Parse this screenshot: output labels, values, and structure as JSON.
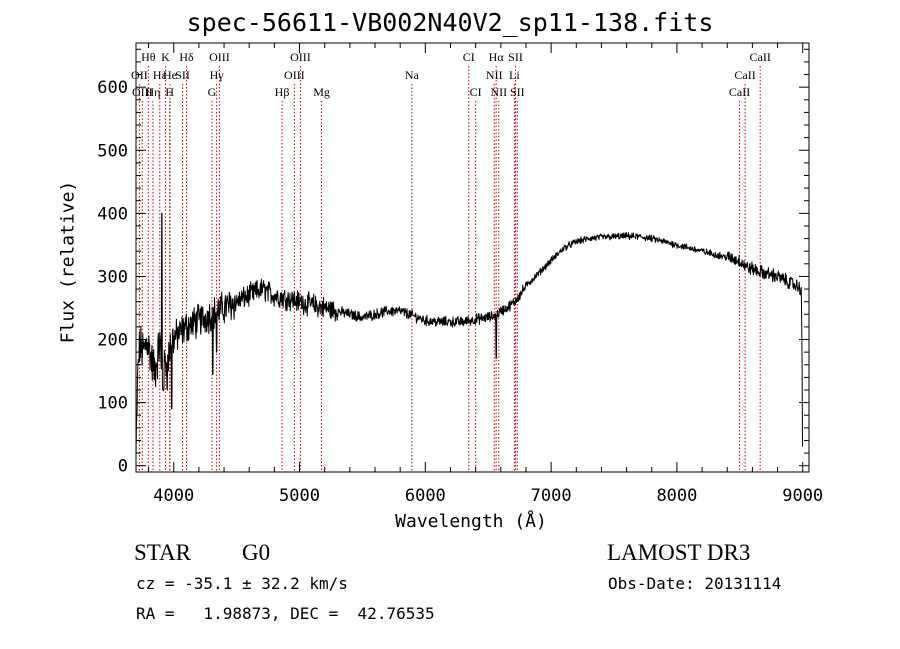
{
  "chart_data": {
    "type": "line",
    "title": "spec-56611-VB002N40V2_sp11-138.fits",
    "xlabel": "Wavelength (Å)",
    "ylabel": "Flux (relative)",
    "xlim": [
      3700,
      9050
    ],
    "ylim": [
      -10,
      670
    ],
    "xticks": [
      4000,
      5000,
      6000,
      7000,
      8000,
      9000
    ],
    "yticks": [
      0,
      100,
      200,
      300,
      400,
      500,
      600
    ],
    "grid": false,
    "spectrum_anchors": {
      "x": [
        3700,
        3715,
        3730,
        3760,
        3790,
        3830,
        3850,
        3870,
        3890,
        3910,
        3935,
        3950,
        3968,
        3990,
        4050,
        4100,
        4200,
        4300,
        4400,
        4500,
        4600,
        4700,
        4800,
        4900,
        5000,
        5100,
        5200,
        5300,
        5400,
        5500,
        5600,
        5700,
        5800,
        5900,
        6000,
        6100,
        6200,
        6300,
        6400,
        6500,
        6560,
        6600,
        6650,
        6700,
        6750,
        6800,
        6900,
        7000,
        7100,
        7200,
        7300,
        7400,
        7500,
        7600,
        7700,
        7800,
        7900,
        8000,
        8100,
        8200,
        8300,
        8400,
        8500,
        8550,
        8600,
        8650,
        8700,
        8800,
        8900,
        8950,
        8990,
        9000
      ],
      "y": [
        10,
        150,
        190,
        180,
        200,
        160,
        150,
        170,
        200,
        120,
        170,
        150,
        190,
        200,
        210,
        220,
        230,
        240,
        250,
        260,
        270,
        280,
        270,
        265,
        260,
        255,
        250,
        245,
        240,
        235,
        240,
        245,
        245,
        238,
        230,
        228,
        228,
        228,
        232,
        235,
        238,
        245,
        250,
        258,
        270,
        285,
        305,
        325,
        345,
        355,
        360,
        362,
        363,
        364,
        363,
        360,
        355,
        350,
        345,
        340,
        335,
        330,
        325,
        315,
        312,
        308,
        305,
        300,
        290,
        285,
        280,
        30
      ]
    },
    "spikes": [
      {
        "x": 3905,
        "y": 400
      },
      {
        "x": 3983,
        "y": 90
      },
      {
        "x": 4310,
        "y": 145
      },
      {
        "x": 4340,
        "y": 180
      },
      {
        "x": 6563,
        "y": 170
      }
    ],
    "lines": [
      {
        "name": "Hθ",
        "x": 3798,
        "row": 0
      },
      {
        "name": "K",
        "x": 3934,
        "row": 0
      },
      {
        "name": "Hδ",
        "x": 4102,
        "row": 0
      },
      {
        "name": "OIII",
        "x": 4363,
        "row": 0
      },
      {
        "name": "OIII",
        "x": 5007,
        "row": 0
      },
      {
        "name": "CI",
        "x": 6345,
        "row": 0
      },
      {
        "name": "Hα",
        "x": 6563,
        "row": 0
      },
      {
        "name": "SII",
        "x": 6717,
        "row": 0
      },
      {
        "name": "CaII",
        "x": 8662,
        "row": 0
      },
      {
        "name": "OII",
        "x": 3727,
        "row": 1
      },
      {
        "name": "Hε",
        "x": 3889,
        "row": 1
      },
      {
        "name": "He",
        "x": 3970,
        "row": 1
      },
      {
        "name": "SII",
        "x": 4070,
        "row": 1
      },
      {
        "name": "Hγ",
        "x": 4341,
        "row": 1
      },
      {
        "name": "OIII",
        "x": 4959,
        "row": 1
      },
      {
        "name": "Na",
        "x": 5893,
        "row": 1
      },
      {
        "name": "NII",
        "x": 6548,
        "row": 1
      },
      {
        "name": "Li",
        "x": 6708,
        "row": 1
      },
      {
        "name": "CaII",
        "x": 8542,
        "row": 1
      },
      {
        "name": "OIII",
        "x": 3750,
        "row": 2
      },
      {
        "name": "Hη",
        "x": 3835,
        "row": 2
      },
      {
        "name": "H",
        "x": 3968,
        "row": 2
      },
      {
        "name": "G",
        "x": 4304,
        "row": 2
      },
      {
        "name": "Hβ",
        "x": 4861,
        "row": 2
      },
      {
        "name": "Mg",
        "x": 5175,
        "row": 2
      },
      {
        "name": "CI",
        "x": 6400,
        "row": 2
      },
      {
        "name": "NII",
        "x": 6584,
        "row": 2
      },
      {
        "name": "SII",
        "x": 6731,
        "row": 2
      },
      {
        "name": "CaII",
        "x": 8498,
        "row": 2
      }
    ],
    "colors": {
      "spectrum": "#000000",
      "line_marker": "#cc0000",
      "axes": "#000000"
    }
  },
  "info": {
    "object_class": "STAR",
    "subclass": "G0",
    "survey": "LAMOST DR3",
    "redshift": "cz = -35.1 ± 32.2 km/s",
    "obs_date": "Obs-Date: 20131114",
    "coords": "RA =   1.98873, DEC =  42.76535"
  }
}
